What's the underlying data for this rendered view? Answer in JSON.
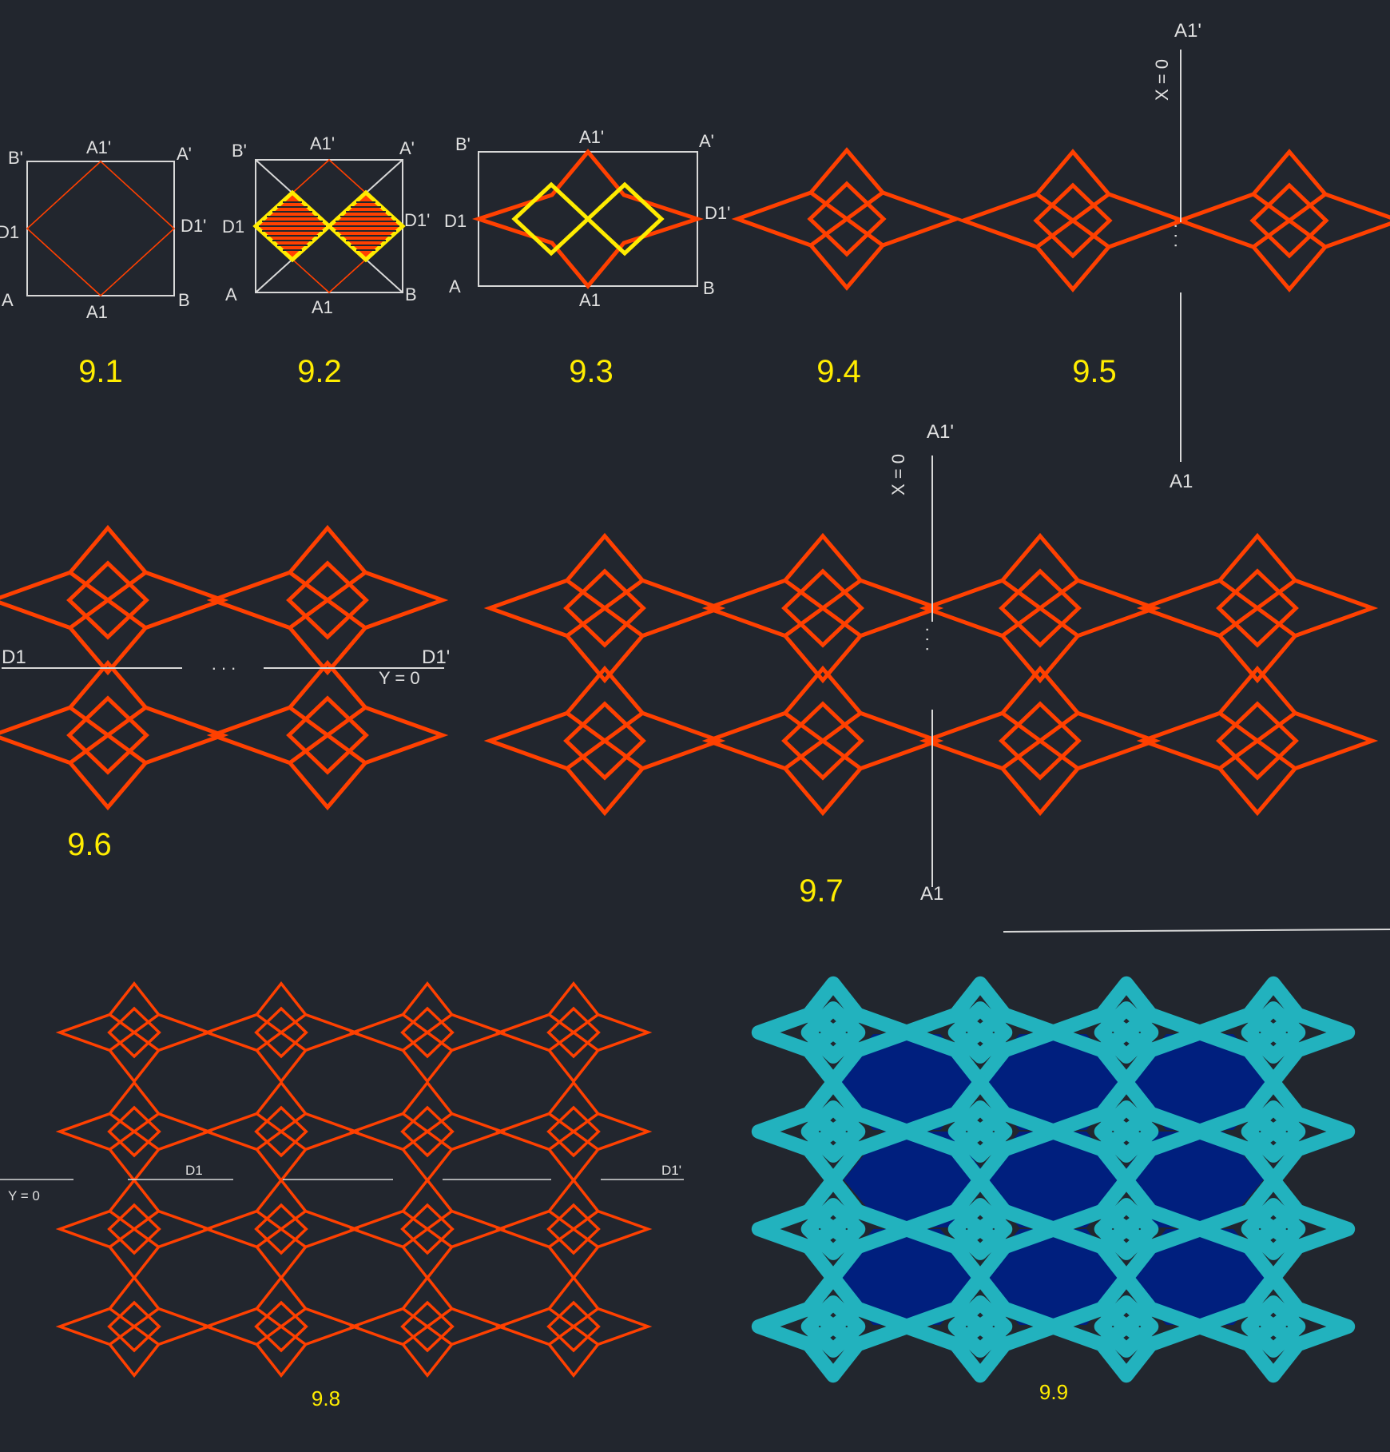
{
  "colors": {
    "background": "#22262e",
    "construction": "#d8d8d8",
    "pattern": "#ff4000",
    "highlight": "#ffec00",
    "caption": "#ffec00",
    "fill_teal": "#22b2be",
    "fill_navy": "#001f7e"
  },
  "figures": {
    "f91": {
      "caption": "9.1",
      "labels": {
        "b_prime": "B'",
        "a1_prime": "A1'",
        "a_prime": "A'",
        "d1": "D1",
        "d1_prime": "D1'",
        "a": "A",
        "a1": "A1",
        "b": "B"
      }
    },
    "f92": {
      "caption": "9.2",
      "labels": {
        "b_prime": "B'",
        "a1_prime": "A1'",
        "a_prime": "A'",
        "d1": "D1",
        "d1_prime": "D1'",
        "a": "A",
        "a1": "A1",
        "b": "B"
      }
    },
    "f93": {
      "caption": "9.3",
      "labels": {
        "b_prime": "B'",
        "a1_prime": "A1'",
        "a_prime": "A'",
        "d1": "D1",
        "d1_prime": "D1'",
        "a": "A",
        "a1": "A1",
        "b": "B"
      }
    },
    "f94": {
      "caption": "9.4"
    },
    "f95": {
      "caption": "9.5",
      "labels": {
        "a1_prime": "A1'",
        "a1": "A1",
        "axis": "X = 0"
      }
    },
    "f96": {
      "caption": "9.6",
      "labels": {
        "d1": "D1",
        "d1_prime": "D1'",
        "axis": "Y = 0"
      }
    },
    "f97": {
      "caption": "9.7",
      "labels": {
        "a1_prime": "A1'",
        "a1": "A1",
        "axis": "X = 0"
      }
    },
    "f98": {
      "caption": "9.8",
      "labels": {
        "d1": "D1",
        "d1_prime": "D1'",
        "axis": "Y = 0"
      }
    },
    "f99": {
      "caption": "9.9"
    }
  }
}
